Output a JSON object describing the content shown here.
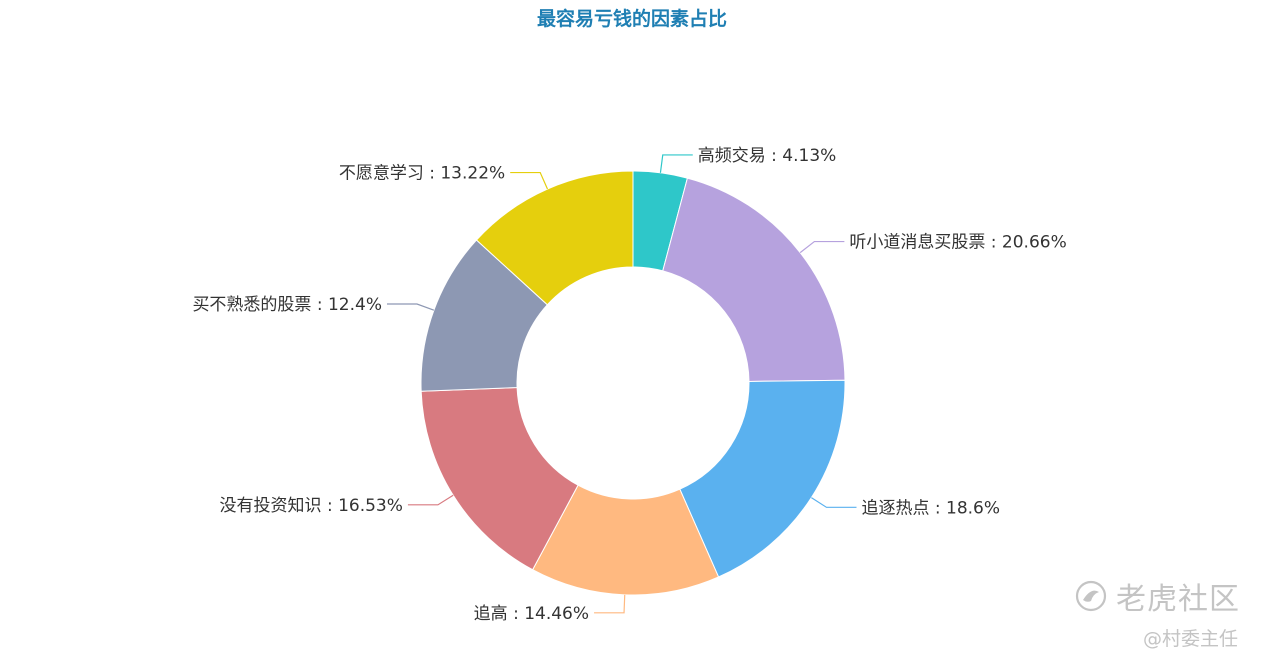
{
  "chart_data": {
    "type": "pie",
    "title": "最容易亏钱的因素占比",
    "donut": true,
    "slices": [
      {
        "name": "高频交易",
        "value": 4.13,
        "label": "高频交易 : 4.13%",
        "color": "#2ec7c9"
      },
      {
        "name": "听小道消息买股票",
        "value": 20.66,
        "label": "听小道消息买股票 : 20.66%",
        "color": "#b6a2de"
      },
      {
        "name": "追逐热点",
        "value": 18.6,
        "label": "追逐热点 : 18.6%",
        "color": "#5ab1ef"
      },
      {
        "name": "追高",
        "value": 14.46,
        "label": "追高 : 14.46%",
        "color": "#ffb980"
      },
      {
        "name": "没有投资知识",
        "value": 16.53,
        "label": "没有投资知识 : 16.53%",
        "color": "#d87a80"
      },
      {
        "name": "买不熟悉的股票",
        "value": 12.4,
        "label": "买不熟悉的股票 : 12.4%",
        "color": "#8d98b3"
      },
      {
        "name": "不愿意学习",
        "value": 13.22,
        "label": "不愿意学习 : 13.22%",
        "color": "#e5cf0d"
      }
    ]
  },
  "watermark": {
    "brand": "老虎社区",
    "author": "@村委主任",
    "icon": "tiger-logo-icon"
  }
}
